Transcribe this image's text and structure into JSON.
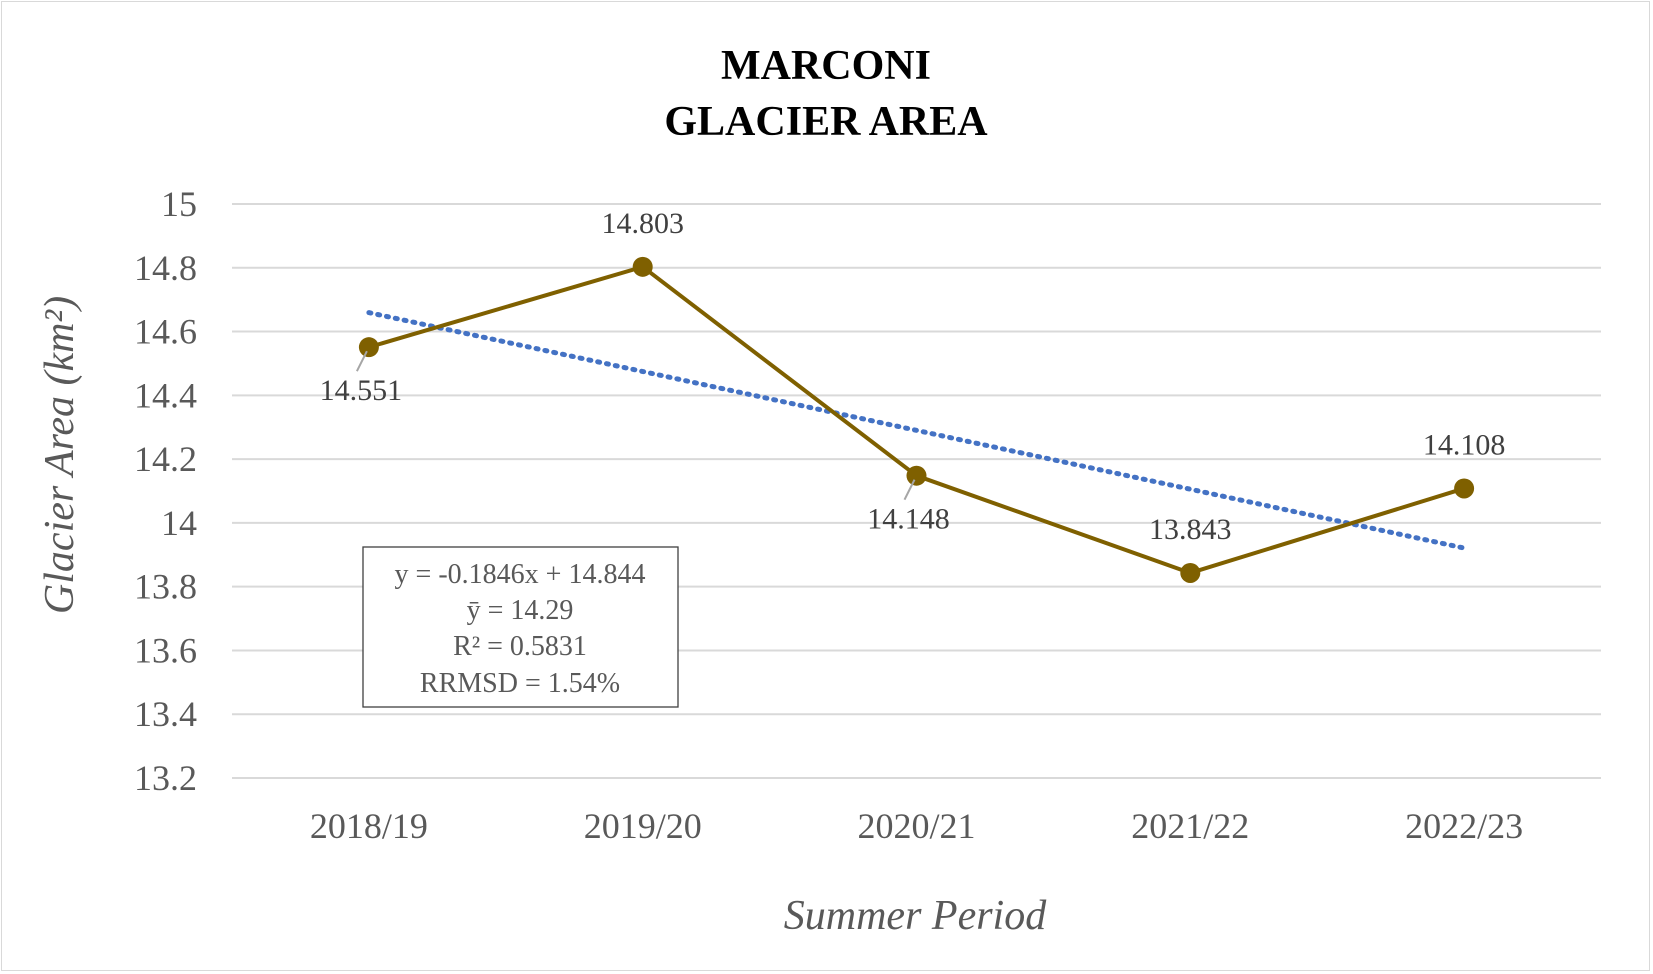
{
  "chart_data": {
    "type": "line",
    "title": [
      "MARCONI",
      "GLACIER AREA"
    ],
    "xlabel": "Summer Period",
    "ylabel": "Glacier Area (km²)",
    "categories": [
      "2018/19",
      "2019/20",
      "2020/21",
      "2021/22",
      "2022/23"
    ],
    "ylim": [
      13.2,
      15
    ],
    "yticks": [
      13.2,
      13.4,
      13.6,
      13.8,
      14,
      14.2,
      14.4,
      14.6,
      14.8,
      15
    ],
    "ytick_labels": [
      "13.2",
      "13.4",
      "13.6",
      "13.8",
      "14",
      "14.2",
      "14.4",
      "14.6",
      "14.8",
      "15"
    ],
    "grid": true,
    "series": [
      {
        "values": [
          14.551,
          14.803,
          14.148,
          13.843,
          14.108
        ],
        "data_labels": [
          "14.551",
          "14.803",
          "14.148",
          "13.843",
          "14.108"
        ],
        "label_positions": [
          "below",
          "above",
          "below",
          "above",
          "above"
        ],
        "color": "#7f6000",
        "marker": "circle"
      }
    ],
    "trendline": {
      "type": "linear",
      "slope": -0.1846,
      "intercept": 14.844,
      "color": "#4472c4",
      "style": "dotted"
    },
    "annotation_box": {
      "lines": [
        "y = -0.1846x + 14.844",
        "ȳ = 14.29",
        "R² = 0.5831",
        "RRMSD = 1.54%"
      ]
    }
  }
}
